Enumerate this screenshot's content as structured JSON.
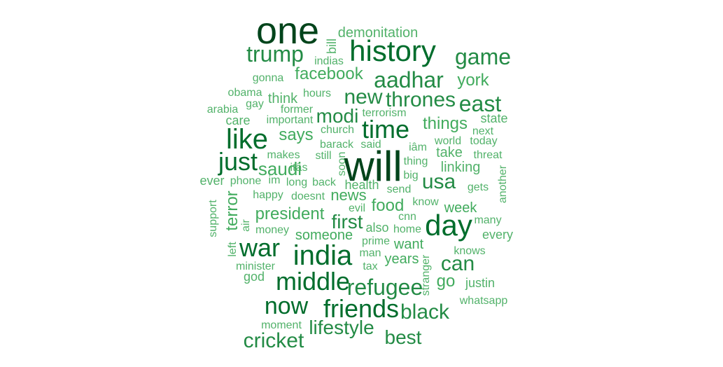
{
  "words": [
    {
      "text": "one",
      "tier": 1
    },
    {
      "text": "will",
      "tier": 1
    },
    {
      "text": "history",
      "tier": 2
    },
    {
      "text": "india",
      "tier": 2
    },
    {
      "text": "day",
      "tier": 2
    },
    {
      "text": "like",
      "tier": 2
    },
    {
      "text": "time",
      "tier": 2
    },
    {
      "text": "war",
      "tier": 2
    },
    {
      "text": "middle",
      "tier": 2
    },
    {
      "text": "just",
      "tier": 2
    },
    {
      "text": "friends",
      "tier": 2
    },
    {
      "text": "refugee",
      "tier": 2
    },
    {
      "text": "now",
      "tier": 2
    },
    {
      "text": "aadhar",
      "tier": 2
    },
    {
      "text": "game",
      "tier": 2
    },
    {
      "text": "trump",
      "tier": 2
    },
    {
      "text": "new",
      "tier": 2
    },
    {
      "text": "thrones",
      "tier": 3
    },
    {
      "text": "east",
      "tier": 2
    },
    {
      "text": "cricket",
      "tier": 3
    },
    {
      "text": "lifestyle",
      "tier": 3
    },
    {
      "text": "black",
      "tier": 3
    },
    {
      "text": "best",
      "tier": 3
    },
    {
      "text": "usa",
      "tier": 3
    },
    {
      "text": "can",
      "tier": 3
    },
    {
      "text": "first",
      "tier": 3
    },
    {
      "text": "modi",
      "tier": 3
    },
    {
      "text": "saudi",
      "tier": 3
    },
    {
      "text": "says",
      "tier": 3
    },
    {
      "text": "things",
      "tier": 3
    },
    {
      "text": "president",
      "tier": 3
    },
    {
      "text": "facebook",
      "tier": 3
    },
    {
      "text": "terror",
      "tier": 3
    },
    {
      "text": "food",
      "tier": 3
    },
    {
      "text": "news",
      "tier": 3
    },
    {
      "text": "someone",
      "tier": 4
    },
    {
      "text": "go",
      "tier": 3
    },
    {
      "text": "years",
      "tier": 4
    },
    {
      "text": "want",
      "tier": 4
    },
    {
      "text": "week",
      "tier": 4
    },
    {
      "text": "york",
      "tier": 4
    },
    {
      "text": "demonitation",
      "tier": 5
    },
    {
      "text": "bill",
      "tier": 5
    },
    {
      "text": "indias",
      "tier": 5
    },
    {
      "text": "gonna",
      "tier": 5
    },
    {
      "text": "obama",
      "tier": 5
    },
    {
      "text": "think",
      "tier": 4
    },
    {
      "text": "hours",
      "tier": 5
    },
    {
      "text": "gay",
      "tier": 5
    },
    {
      "text": "arabia",
      "tier": 5
    },
    {
      "text": "care",
      "tier": 4
    },
    {
      "text": "former",
      "tier": 5
    },
    {
      "text": "important",
      "tier": 5
    },
    {
      "text": "terrorism",
      "tier": 5
    },
    {
      "text": "church",
      "tier": 5
    },
    {
      "text": "state",
      "tier": 5
    },
    {
      "text": "next",
      "tier": 5
    },
    {
      "text": "barack",
      "tier": 5
    },
    {
      "text": "said",
      "tier": 5
    },
    {
      "text": "iâm",
      "tier": 5
    },
    {
      "text": "world",
      "tier": 5
    },
    {
      "text": "today",
      "tier": 5
    },
    {
      "text": "take",
      "tier": 4
    },
    {
      "text": "threat",
      "tier": 5
    },
    {
      "text": "makes",
      "tier": 5
    },
    {
      "text": "itâs",
      "tier": 5
    },
    {
      "text": "still",
      "tier": 5
    },
    {
      "text": "soon",
      "tier": 5
    },
    {
      "text": "thing",
      "tier": 5
    },
    {
      "text": "linking",
      "tier": 4
    },
    {
      "text": "another",
      "tier": 5
    },
    {
      "text": "big",
      "tier": 5
    },
    {
      "text": "ever",
      "tier": 5
    },
    {
      "text": "phone",
      "tier": 5
    },
    {
      "text": "im",
      "tier": 5
    },
    {
      "text": "long",
      "tier": 5
    },
    {
      "text": "back",
      "tier": 5
    },
    {
      "text": "health",
      "tier": 4
    },
    {
      "text": "send",
      "tier": 5
    },
    {
      "text": "gets",
      "tier": 5
    },
    {
      "text": "happy",
      "tier": 5
    },
    {
      "text": "doesnt",
      "tier": 5
    },
    {
      "text": "know",
      "tier": 5
    },
    {
      "text": "support",
      "tier": 5
    },
    {
      "text": "evil",
      "tier": 5
    },
    {
      "text": "air",
      "tier": 5
    },
    {
      "text": "cnn",
      "tier": 5
    },
    {
      "text": "many",
      "tier": 5
    },
    {
      "text": "money",
      "tier": 5
    },
    {
      "text": "also",
      "tier": 4
    },
    {
      "text": "home",
      "tier": 5
    },
    {
      "text": "every",
      "tier": 4
    },
    {
      "text": "left",
      "tier": 5
    },
    {
      "text": "prime",
      "tier": 5
    },
    {
      "text": "man",
      "tier": 5
    },
    {
      "text": "knows",
      "tier": 5
    },
    {
      "text": "minister",
      "tier": 5
    },
    {
      "text": "tax",
      "tier": 5
    },
    {
      "text": "stranger",
      "tier": 5
    },
    {
      "text": "god",
      "tier": 4
    },
    {
      "text": "justin",
      "tier": 4
    },
    {
      "text": "whatsapp",
      "tier": 5
    },
    {
      "text": "moment",
      "tier": 5
    }
  ]
}
